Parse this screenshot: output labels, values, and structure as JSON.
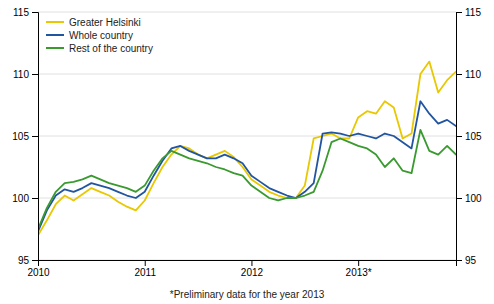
{
  "chart_data": {
    "type": "line",
    "categories": [
      "2010",
      null,
      null,
      null,
      null,
      null,
      null,
      null,
      null,
      null,
      null,
      null,
      "2011",
      null,
      null,
      null,
      null,
      null,
      null,
      null,
      null,
      null,
      null,
      null,
      "2012",
      null,
      null,
      null,
      null,
      null,
      null,
      null,
      null,
      null,
      null,
      null,
      "2013*",
      null,
      null,
      null,
      null,
      null,
      null,
      null,
      null,
      null,
      null,
      null
    ],
    "series": [
      {
        "name": "Greater Helsinki",
        "color": "#E8C800",
        "values": [
          97.0,
          98.2,
          99.5,
          100.2,
          99.8,
          100.3,
          100.8,
          100.5,
          100.2,
          99.7,
          99.3,
          99.0,
          99.8,
          101.2,
          102.5,
          103.5,
          104.2,
          104.0,
          103.5,
          103.2,
          103.5,
          103.8,
          103.3,
          102.5,
          101.5,
          101.0,
          100.5,
          100.2,
          100.0,
          100.0,
          101.0,
          104.8,
          105.0,
          105.2,
          104.8,
          104.8,
          106.5,
          107.0,
          106.8,
          107.8,
          107.3,
          104.8,
          105.2,
          110.0,
          111.0,
          108.5,
          109.5,
          110.2
        ]
      },
      {
        "name": "Whole country",
        "color": "#2255A0",
        "values": [
          97.3,
          99.0,
          100.2,
          100.7,
          100.5,
          100.8,
          101.2,
          101.0,
          100.8,
          100.5,
          100.2,
          100.0,
          100.5,
          101.8,
          103.0,
          104.0,
          104.2,
          103.8,
          103.5,
          103.2,
          103.2,
          103.5,
          103.2,
          102.8,
          101.8,
          101.3,
          100.8,
          100.5,
          100.2,
          100.0,
          100.5,
          101.2,
          105.2,
          105.3,
          105.2,
          105.0,
          105.2,
          105.0,
          104.8,
          105.2,
          105.0,
          104.5,
          104.0,
          107.8,
          106.8,
          106.0,
          106.3,
          105.8
        ]
      },
      {
        "name": "Rest of the country",
        "color": "#3A9A30",
        "values": [
          97.5,
          99.2,
          100.5,
          101.2,
          101.3,
          101.5,
          101.8,
          101.5,
          101.2,
          101.0,
          100.8,
          100.5,
          101.0,
          102.2,
          103.2,
          103.8,
          103.5,
          103.2,
          103.0,
          102.8,
          102.5,
          102.3,
          102.0,
          101.8,
          101.0,
          100.5,
          100.0,
          99.8,
          100.0,
          100.0,
          100.2,
          100.5,
          102.2,
          104.5,
          104.8,
          104.5,
          104.2,
          104.0,
          103.5,
          102.5,
          103.2,
          102.2,
          102.0,
          105.5,
          103.8,
          103.5,
          104.2,
          103.5
        ]
      }
    ],
    "ylim": [
      95,
      115
    ],
    "yticks": [
      95,
      100,
      105,
      110,
      115
    ],
    "y2lim": [
      95,
      115
    ],
    "y2ticks": [
      95,
      100,
      105,
      110,
      115
    ],
    "grid": true,
    "legend": "upper left",
    "annotations": [
      "*Preliminary data for the year 2013"
    ]
  }
}
